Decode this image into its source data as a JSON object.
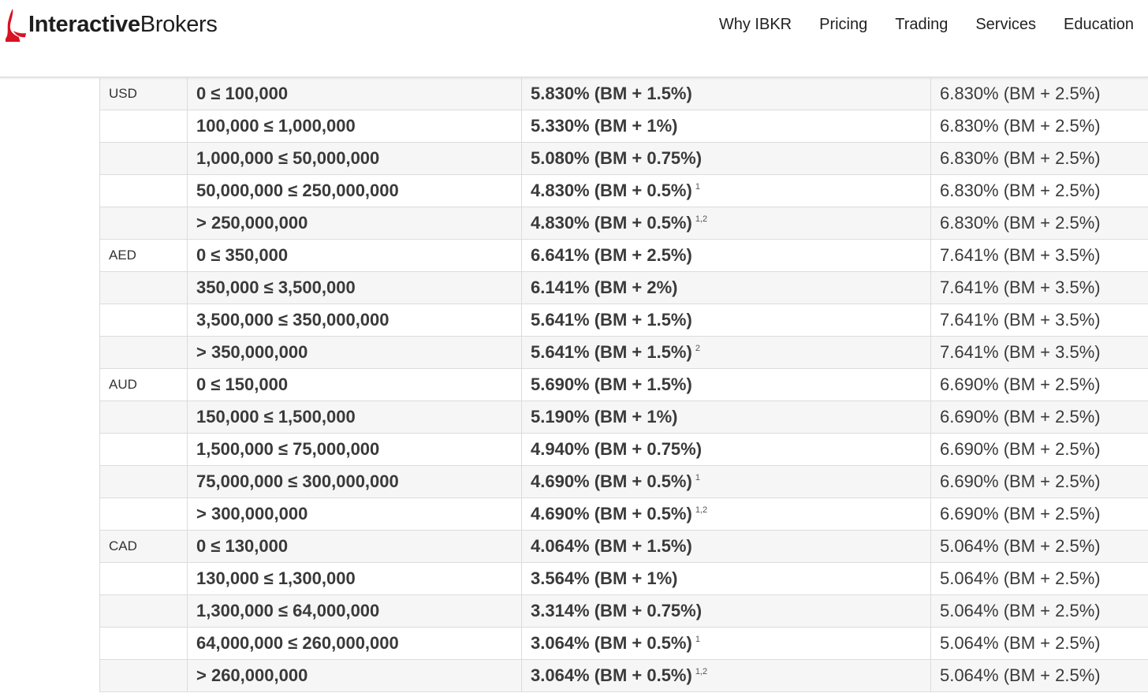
{
  "brand": {
    "logo_bold": "Interactive",
    "logo_light": "Brokers",
    "accent_color": "#d81222"
  },
  "nav": {
    "items": [
      "Why IBKR",
      "Pricing",
      "Trading",
      "Services",
      "Education"
    ]
  },
  "rates_table": {
    "rows": [
      {
        "currency": "USD",
        "tier": "0 ≤ 100,000",
        "rate": "5.830% (BM + 1.5%)",
        "note": "",
        "rate2": "6.830% (BM + 2.5%)"
      },
      {
        "currency": "",
        "tier": "100,000 ≤ 1,000,000",
        "rate": "5.330% (BM + 1%)",
        "note": "",
        "rate2": "6.830% (BM + 2.5%)"
      },
      {
        "currency": "",
        "tier": "1,000,000 ≤ 50,000,000",
        "rate": "5.080% (BM + 0.75%)",
        "note": "",
        "rate2": "6.830% (BM + 2.5%)"
      },
      {
        "currency": "",
        "tier": "50,000,000 ≤ 250,000,000",
        "rate": "4.830% (BM + 0.5%)",
        "note": "1",
        "rate2": "6.830% (BM + 2.5%)"
      },
      {
        "currency": "",
        "tier": "> 250,000,000",
        "rate": "4.830% (BM + 0.5%)",
        "note": "1,2",
        "rate2": "6.830% (BM + 2.5%)"
      },
      {
        "currency": "AED",
        "tier": "0 ≤ 350,000",
        "rate": "6.641% (BM + 2.5%)",
        "note": "",
        "rate2": "7.641% (BM + 3.5%)"
      },
      {
        "currency": "",
        "tier": "350,000 ≤ 3,500,000",
        "rate": "6.141% (BM + 2%)",
        "note": "",
        "rate2": "7.641% (BM + 3.5%)"
      },
      {
        "currency": "",
        "tier": "3,500,000 ≤ 350,000,000",
        "rate": "5.641% (BM + 1.5%)",
        "note": "",
        "rate2": "7.641% (BM + 3.5%)"
      },
      {
        "currency": "",
        "tier": "> 350,000,000",
        "rate": "5.641% (BM + 1.5%)",
        "note": "2",
        "rate2": "7.641% (BM + 3.5%)"
      },
      {
        "currency": "AUD",
        "tier": "0 ≤ 150,000",
        "rate": "5.690% (BM + 1.5%)",
        "note": "",
        "rate2": "6.690% (BM + 2.5%)"
      },
      {
        "currency": "",
        "tier": "150,000 ≤ 1,500,000",
        "rate": "5.190% (BM + 1%)",
        "note": "",
        "rate2": "6.690% (BM + 2.5%)"
      },
      {
        "currency": "",
        "tier": "1,500,000 ≤ 75,000,000",
        "rate": "4.940% (BM + 0.75%)",
        "note": "",
        "rate2": "6.690% (BM + 2.5%)"
      },
      {
        "currency": "",
        "tier": "75,000,000 ≤ 300,000,000",
        "rate": "4.690% (BM + 0.5%)",
        "note": "1",
        "rate2": "6.690% (BM + 2.5%)"
      },
      {
        "currency": "",
        "tier": "> 300,000,000",
        "rate": "4.690% (BM + 0.5%)",
        "note": "1,2",
        "rate2": "6.690% (BM + 2.5%)"
      },
      {
        "currency": "CAD",
        "tier": "0 ≤ 130,000",
        "rate": "4.064% (BM + 1.5%)",
        "note": "",
        "rate2": "5.064% (BM + 2.5%)"
      },
      {
        "currency": "",
        "tier": "130,000 ≤ 1,300,000",
        "rate": "3.564% (BM + 1%)",
        "note": "",
        "rate2": "5.064% (BM + 2.5%)"
      },
      {
        "currency": "",
        "tier": "1,300,000 ≤ 64,000,000",
        "rate": "3.314% (BM + 0.75%)",
        "note": "",
        "rate2": "5.064% (BM + 2.5%)"
      },
      {
        "currency": "",
        "tier": "64,000,000 ≤ 260,000,000",
        "rate": "3.064% (BM + 0.5%)",
        "note": "1",
        "rate2": "5.064% (BM + 2.5%)"
      },
      {
        "currency": "",
        "tier": "> 260,000,000",
        "rate": "3.064% (BM + 0.5%)",
        "note": "1,2",
        "rate2": "5.064% (BM + 2.5%)"
      }
    ]
  }
}
